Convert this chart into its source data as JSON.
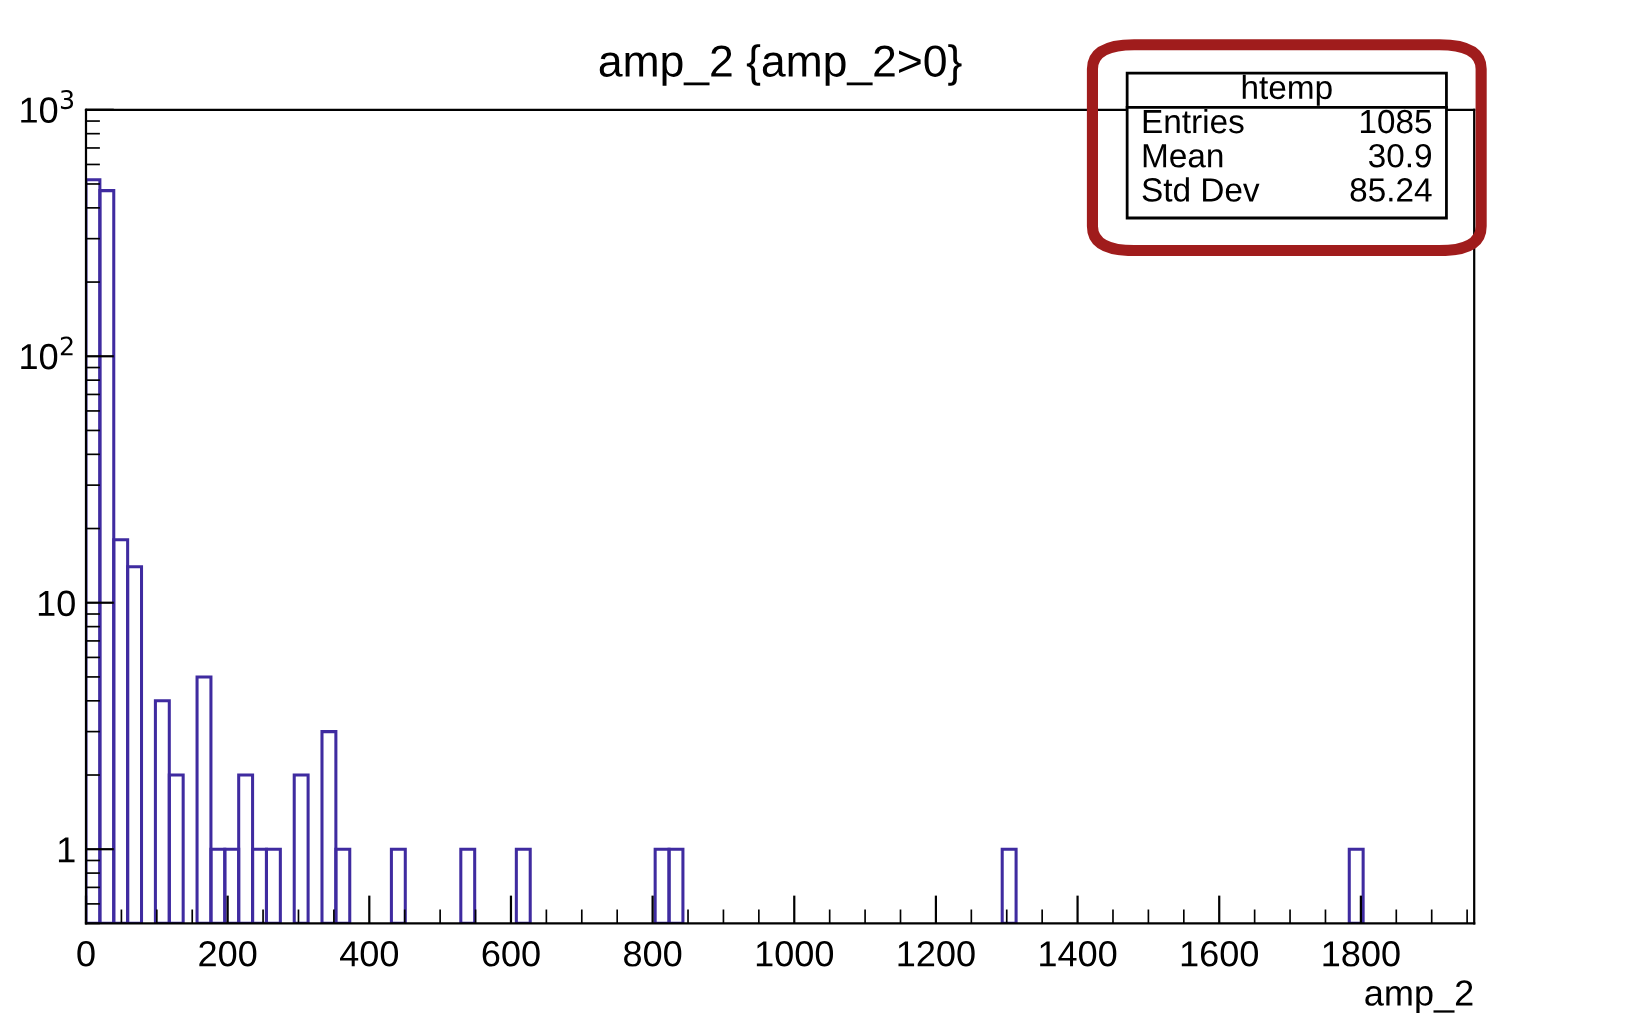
{
  "chart_data": {
    "type": "histogram",
    "title": "amp_2 {amp_2>0}",
    "xlabel": "amp_2",
    "color": "#3f2ba0",
    "bins": [
      0,
      19.6,
      39.2,
      58.8,
      78.4,
      98,
      117.6,
      137.2,
      156.8,
      176.4,
      196,
      215.6,
      235.2,
      254.8,
      274.4,
      294,
      313.6,
      333.2,
      352.8,
      372.4,
      392,
      411.6,
      431.2,
      450.8,
      470.4,
      490,
      509.6,
      529.2,
      548.8,
      568.4,
      588,
      607.6,
      627.2,
      646.8,
      666.4,
      686,
      705.6,
      725.2,
      744.8,
      764.4,
      784,
      803.6,
      823.2,
      842.8,
      862.4,
      882,
      901.6,
      921.2,
      940.8,
      960.4,
      980,
      999.6,
      1019.2,
      1038.8,
      1058.4,
      1078,
      1097.6,
      1117.2,
      1136.8,
      1156.4,
      1176,
      1195.6,
      1215.2,
      1234.8,
      1254.4,
      1274,
      1293.6,
      1313.2,
      1332.8,
      1352.4,
      1372,
      1391.6,
      1411.2,
      1430.8,
      1450.4,
      1470,
      1489.6,
      1509.2,
      1528.8,
      1548.4,
      1568,
      1587.6,
      1607.2,
      1626.8,
      1646.4,
      1666,
      1685.6,
      1705.2,
      1724.8,
      1744.4,
      1764,
      1783.6,
      1803.2
    ],
    "values": [
      520,
      470,
      18,
      14,
      null,
      4,
      2,
      null,
      5,
      1,
      1,
      2,
      1,
      1,
      null,
      2,
      null,
      3,
      1,
      null,
      null,
      null,
      1,
      null,
      null,
      null,
      null,
      1,
      null,
      null,
      null,
      1,
      null,
      null,
      null,
      null,
      null,
      null,
      null,
      null,
      null,
      1,
      1,
      null,
      null,
      null,
      null,
      null,
      null,
      null,
      null,
      null,
      null,
      null,
      null,
      null,
      null,
      null,
      null,
      null,
      null,
      null,
      null,
      null,
      null,
      null,
      1,
      null,
      null,
      null,
      null,
      null,
      null,
      null,
      null,
      null,
      null,
      null,
      null,
      null,
      null,
      null,
      null,
      null,
      null,
      null,
      null,
      null,
      null,
      null,
      null,
      1
    ],
    "log": "y",
    "xlim": [
      0,
      1960
    ],
    "ylim": [
      0.5,
      1000
    ],
    "xticks": [
      0,
      200,
      400,
      600,
      800,
      1000,
      1200,
      1400,
      1600,
      1800
    ],
    "yticks": [
      1,
      10,
      {
        "value": 100,
        "label": "10$^{2}$"
      },
      {
        "value": 1000,
        "label": "10$^{3}$"
      }
    ],
    "grid": false,
    "annotations": [
      "htemp",
      "Entries",
      "1085",
      "Mean",
      "30.9",
      "Std Dev",
      "85.24"
    ]
  }
}
